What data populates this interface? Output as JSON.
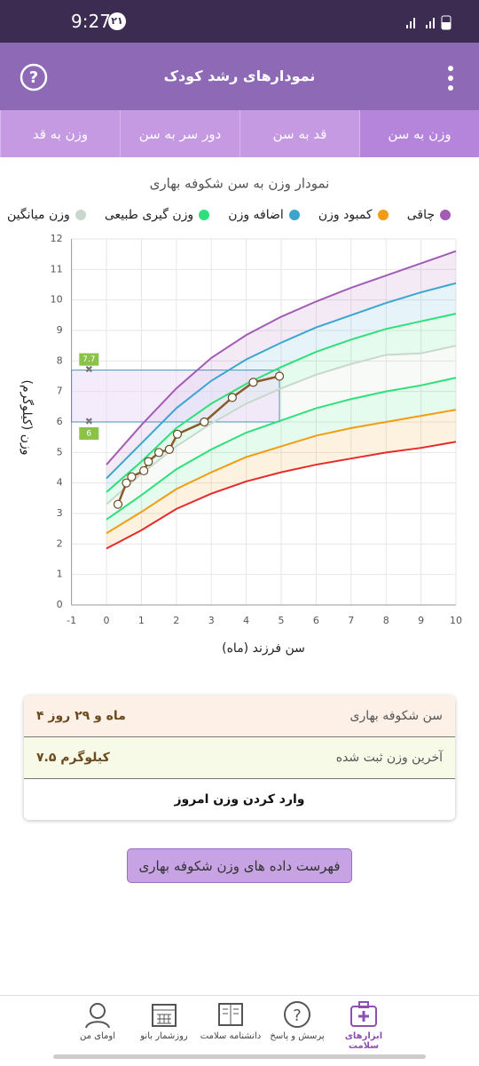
{
  "status_bar": {
    "time": "9:27",
    "badge": "۲۱"
  },
  "header": {
    "title": "نمودارهای رشد کودک"
  },
  "tabs": [
    "وزن به سن",
    "قد به سن",
    "دور سر به سن",
    "وزن به قد"
  ],
  "chart_data": {
    "type": "line",
    "title": "نمودار وزن به سن شکوفه بهاری",
    "x_label": "سن فرزند (ماه)",
    "y_label": "وزن (کیلوگرم)",
    "xlim": [
      -1,
      10
    ],
    "ylim": [
      0,
      12
    ],
    "xticks": [
      -1,
      0,
      1,
      2,
      3,
      4,
      5,
      6,
      7,
      8,
      9,
      10
    ],
    "yticks": [
      0,
      1,
      2,
      3,
      4,
      5,
      6,
      7,
      8,
      9,
      10,
      11,
      12
    ],
    "grid": true,
    "x": [
      0,
      1,
      2,
      3,
      4,
      5,
      6,
      7,
      8,
      9,
      10
    ],
    "series": [
      {
        "name": "چاقی",
        "color": "#a35bb5",
        "values": [
          4.6,
          5.9,
          7.1,
          8.1,
          8.85,
          9.45,
          9.95,
          10.4,
          10.8,
          11.2,
          11.6
        ]
      },
      {
        "name": "کمبود وزن",
        "color": "#f39c12",
        "values": [
          2.35,
          3.05,
          3.8,
          4.35,
          4.85,
          5.2,
          5.55,
          5.8,
          6.0,
          6.2,
          6.4
        ]
      },
      {
        "name": "اضافه وزن",
        "color": "#3aa6d0",
        "values": [
          4.15,
          5.3,
          6.45,
          7.35,
          8.05,
          8.6,
          9.1,
          9.5,
          9.9,
          10.25,
          10.55
        ]
      },
      {
        "name": "وزن گیری طبیعی",
        "color": "#2ee07a",
        "values": [
          3.7,
          4.7,
          5.8,
          6.6,
          7.25,
          7.8,
          8.3,
          8.7,
          9.05,
          9.3,
          9.55
        ]
      },
      {
        "name": "وزن میانگین",
        "color": "#c8d8cc",
        "values": [
          3.3,
          4.3,
          5.2,
          5.95,
          6.6,
          7.1,
          7.55,
          7.9,
          8.2,
          8.25,
          8.5
        ]
      },
      {
        "color": "#2ee07a",
        "values": [
          2.8,
          3.6,
          4.45,
          5.1,
          5.65,
          6.05,
          6.45,
          6.75,
          7.0,
          7.2,
          7.45
        ]
      },
      {
        "color": "#e52b2b",
        "values": [
          1.85,
          2.45,
          3.15,
          3.65,
          4.05,
          4.35,
          4.6,
          4.8,
          5.0,
          5.15,
          5.35
        ]
      },
      {
        "color": "#8b5a2b",
        "x": [
          0.33,
          0.57,
          0.72,
          1.07,
          1.2,
          1.5,
          1.8,
          2.03,
          2.8,
          3.6,
          4.2,
          4.95
        ],
        "values": [
          3.3,
          4.0,
          4.2,
          4.4,
          4.7,
          5.0,
          5.1,
          5.6,
          6.0,
          6.8,
          7.3,
          7.5
        ]
      }
    ],
    "band": {
      "ymin": 6,
      "ymax": 7.7,
      "x": 4.95
    }
  },
  "info": {
    "age_label": "سن شکوفه بهاری",
    "age_value": "۴ ماه و ۲۹ روز",
    "weight_label": "آخرین وزن ثبت شده",
    "weight_value": "۷.۵ کیلوگرم",
    "enter": "وارد کردن وزن امروز"
  },
  "list_button": "فهرست داده های وزن شکوفه بهاری",
  "nav": [
    "ابزارهای سلامت",
    "پرسش و پاسخ",
    "دانشنامه سلامت",
    "روزشمار بانو",
    "اومای من"
  ]
}
